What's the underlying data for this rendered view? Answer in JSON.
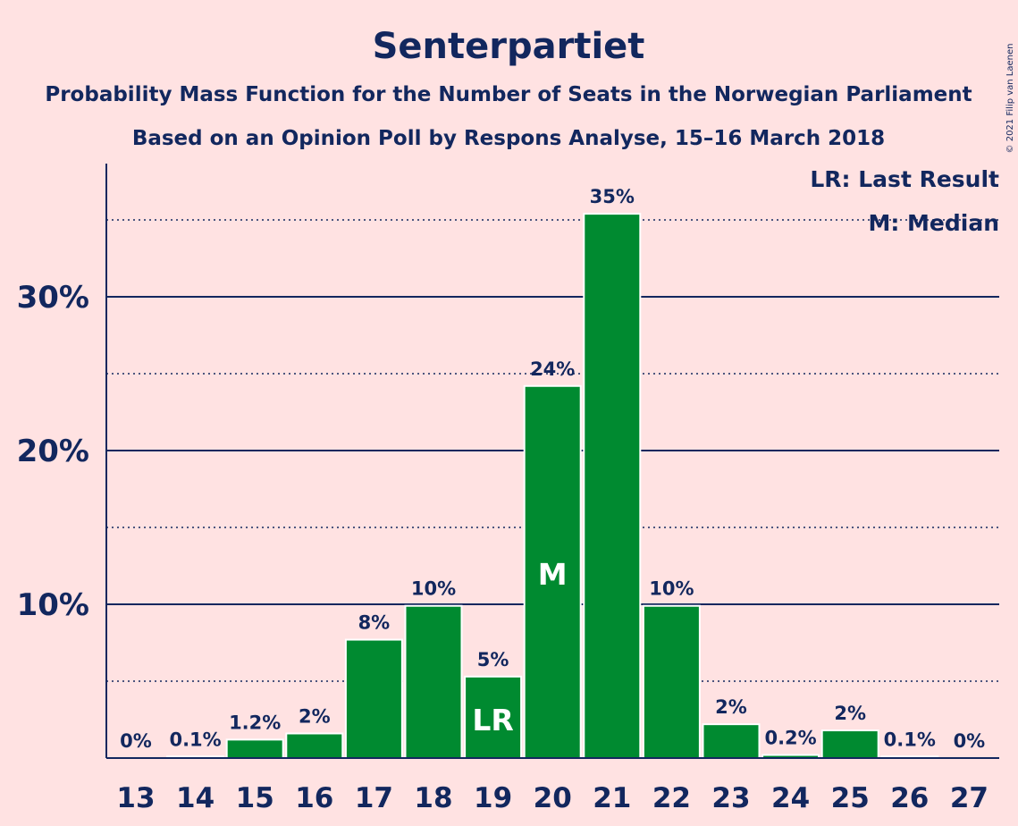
{
  "chart_data": {
    "type": "bar",
    "title": "Senterpartiet",
    "subtitle1": "Probability Mass Function for the Number of Seats in the Norwegian Parliament",
    "subtitle2": "Based on an Opinion Poll by Respons Analyse, 15–16 March 2018",
    "copyright": "© 2021 Filip van Laenen",
    "categories": [
      "13",
      "14",
      "15",
      "16",
      "17",
      "18",
      "19",
      "20",
      "21",
      "22",
      "23",
      "24",
      "25",
      "26",
      "27"
    ],
    "values": [
      0,
      0.1,
      1.2,
      1.6,
      7.7,
      9.9,
      5.3,
      24.2,
      35.4,
      9.9,
      2.2,
      0.2,
      1.8,
      0.1,
      0
    ],
    "data_labels": [
      "0%",
      "0.1%",
      "1.2%",
      "2%",
      "8%",
      "10%",
      "5%",
      "24%",
      "35%",
      "10%",
      "2%",
      "0.2%",
      "2%",
      "0.1%",
      "0%"
    ],
    "ylim": [
      0,
      38
    ],
    "yticks": [
      10,
      20,
      30
    ],
    "ytick_labels": [
      "10%",
      "20%",
      "30%"
    ],
    "minor_gridlines": [
      5,
      15,
      25,
      35
    ],
    "markers": {
      "19": "LR",
      "20": "M"
    },
    "legend": [
      "LR: Last Result",
      "M: Median"
    ],
    "legend_position": "top-right",
    "bar_color": "#008a30",
    "text_color": "#12275e",
    "background_color": "#ffe2e2"
  }
}
